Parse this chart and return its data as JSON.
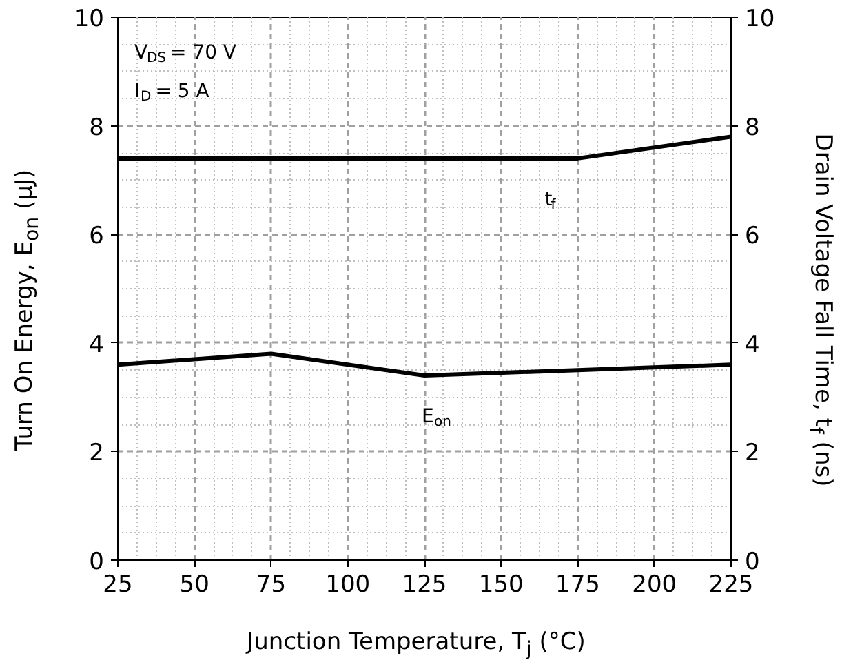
{
  "chart_data": {
    "type": "line",
    "xlabel": "Junction Temperature, T$_{j}$ (°C)",
    "ylabel": "Turn On Energy, E$_{on}$ (µJ)",
    "y2label": "Drain Voltage Fall Time, t$_{f}$ (ns)",
    "xlim": [
      25,
      225
    ],
    "xticks": [
      25,
      50,
      75,
      100,
      125,
      150,
      175,
      200,
      225
    ],
    "ylim": [
      0,
      10
    ],
    "yticks": [
      0,
      2,
      4,
      6,
      8,
      10
    ],
    "y2lim": [
      0,
      10
    ],
    "y2ticks": [
      0,
      2,
      4,
      6,
      8,
      10
    ],
    "grid": true,
    "legend": false,
    "marker": "none",
    "line_style": "solid",
    "series": [
      {
        "name": "E$_{on}$",
        "color": "#000000",
        "x": [
          25,
          75,
          125,
          225
        ],
        "values": [
          3.6,
          3.8,
          3.4,
          3.6
        ]
      },
      {
        "name": "t$_{f}$",
        "color": "#000000",
        "axis": "y2",
        "x": [
          25,
          175,
          225
        ],
        "values": [
          7.4,
          7.4,
          7.8
        ]
      }
    ],
    "annotations": [
      "V$_{DS}$ = 70 V",
      "I$_{D}$ = 5 A"
    ]
  }
}
